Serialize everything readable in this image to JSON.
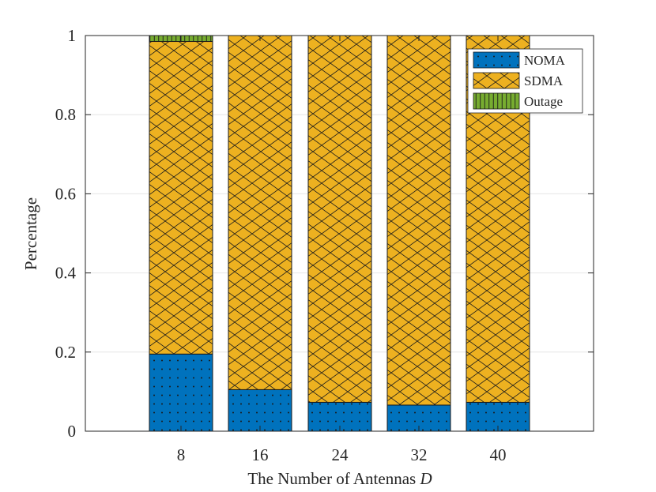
{
  "chart_data": {
    "type": "bar",
    "stacked": true,
    "categories": [
      "8",
      "16",
      "24",
      "32",
      "40"
    ],
    "series": [
      {
        "name": "NOMA",
        "values": [
          0.195,
          0.105,
          0.073,
          0.066,
          0.073
        ],
        "color": "#0072BD",
        "pattern": "dots"
      },
      {
        "name": "SDMA",
        "values": [
          0.79,
          0.895,
          0.927,
          0.934,
          0.927
        ],
        "color": "#EDB120",
        "pattern": "crosshatch"
      },
      {
        "name": "Outage",
        "values": [
          0.015,
          0,
          0,
          0,
          0
        ],
        "color": "#77AC30",
        "pattern": "vertical-lines"
      }
    ],
    "xlabel_text": "The Number of Antennas ",
    "xlabel_var": "D",
    "ylabel": "Percentage",
    "ylim": [
      0,
      1
    ],
    "yticks": [
      "0",
      "0.2",
      "0.4",
      "0.6",
      "0.8",
      "1"
    ],
    "ytick_values": [
      0,
      0.2,
      0.4,
      0.6,
      0.8,
      1
    ],
    "grid": "horizontal",
    "legend_position": "top-right"
  }
}
